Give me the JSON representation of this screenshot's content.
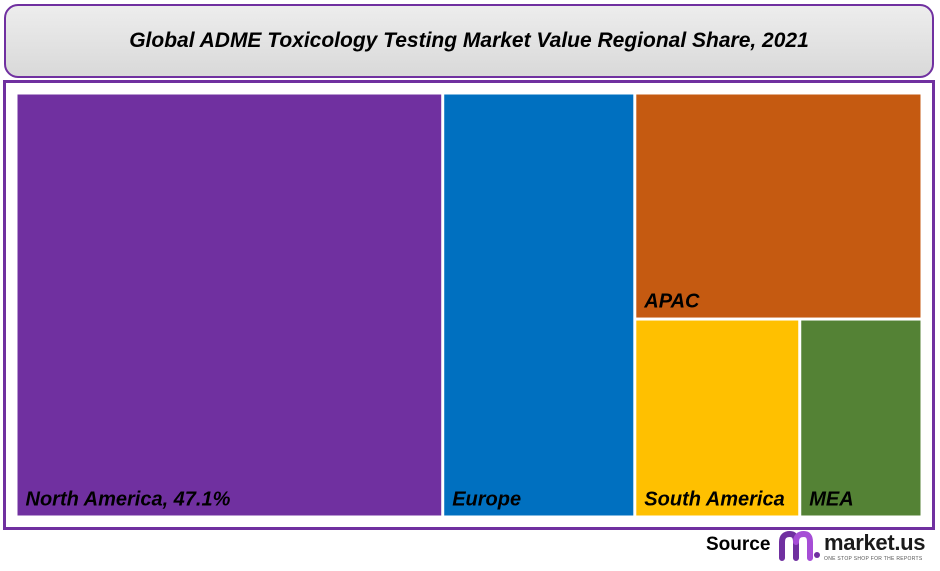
{
  "title": "Global ADME Toxicology Testing Market Value Regional Share, 2021",
  "chart_data": {
    "type": "treemap",
    "title": "Global ADME Toxicology Testing Market Value Regional Share, 2021",
    "series": [
      {
        "name": "North America",
        "label": "North America, 47.1%",
        "value": 47.1,
        "color": "#7030a0"
      },
      {
        "name": "Europe",
        "label": "Europe",
        "value": 21.2,
        "color": "#0070c0"
      },
      {
        "name": "APAC",
        "label": "APAC",
        "value": 16.9,
        "color": "#c55a11"
      },
      {
        "name": "South America",
        "label": "South America",
        "value": 8.5,
        "color": "#ffc000"
      },
      {
        "name": "MEA",
        "label": "MEA",
        "value": 6.3,
        "color": "#548235"
      }
    ]
  },
  "footer": {
    "source_label": "Source",
    "logo_name": "market.us",
    "logo_tagline": "ONE STOP SHOP FOR THE REPORTS"
  },
  "colors": {
    "frame": "#7030a0",
    "logo_accent": "#7030a0"
  }
}
